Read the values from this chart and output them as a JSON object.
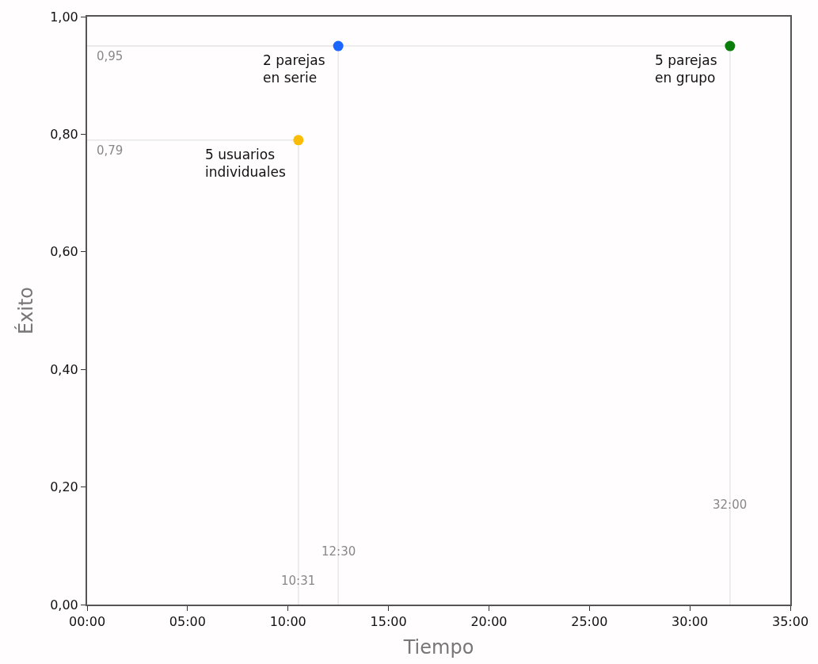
{
  "chart_data": {
    "type": "scatter",
    "xlabel": "Tiempo",
    "ylabel": "Éxito",
    "series": [
      {
        "type": "line",
        "color": "#e8e8e8",
        "marker": "none",
        "x": [
          0,
          10.5167,
          10.5167
        ],
        "values": [
          0.79,
          0.79,
          0
        ]
      },
      {
        "type": "line",
        "color": "#e8e8e8",
        "marker": "none",
        "x": [
          0,
          12.5,
          12.5
        ],
        "values": [
          0.95,
          0.95,
          0
        ]
      },
      {
        "type": "line",
        "color": "#e8e8e8",
        "marker": "none",
        "x": [
          0,
          32,
          32
        ],
        "values": [
          0.95,
          0.95,
          0
        ]
      },
      {
        "x": [
          10.5167,
          12.5,
          32
        ],
        "values": [
          0.79,
          0.95,
          0.95
        ],
        "colors": [
          "#fbbc05",
          "#1a66ff",
          "#0a7d0a"
        ],
        "marker": "circle"
      }
    ],
    "xlim": [
      0,
      35
    ],
    "xticks": [
      {
        "value": 0,
        "label": "00:00"
      },
      {
        "value": 5,
        "label": "05:00"
      },
      {
        "value": 10,
        "label": "10:00"
      },
      {
        "value": 15,
        "label": "15:00"
      },
      {
        "value": 20,
        "label": "20:00"
      },
      {
        "value": 25,
        "label": "25:00"
      },
      {
        "value": 30,
        "label": "30:00"
      },
      {
        "value": 35,
        "label": "35:00"
      }
    ],
    "ylim": [
      0,
      1
    ],
    "yticks": [
      {
        "value": 0,
        "label": "0,00"
      },
      {
        "value": 0.2,
        "label": "0,20"
      },
      {
        "value": 0.4,
        "label": "0,40"
      },
      {
        "value": 0.6,
        "label": "0,60"
      },
      {
        "value": 0.8,
        "label": "0,80"
      },
      {
        "value": 1,
        "label": "1,00"
      }
    ],
    "annotations": [
      {
        "text": "5 usuarios\nindividuales",
        "x": 10.5167,
        "y": 0.79
      },
      {
        "text": "2 parejas\nen serie",
        "x": 12.5,
        "y": 0.95
      },
      {
        "text": "5 parejas\nen grupo",
        "x": 32,
        "y": 0.95
      },
      {
        "text": "0,95",
        "x": 0,
        "y": 0.95
      },
      {
        "text": "0,79",
        "x": 0,
        "y": 0.79
      },
      {
        "text": "10:31",
        "x": 10.5167,
        "y": 0.04
      },
      {
        "text": "12:30",
        "x": 12.5,
        "y": 0.09
      },
      {
        "text": "32:00",
        "x": 32,
        "y": 0.17
      }
    ]
  }
}
